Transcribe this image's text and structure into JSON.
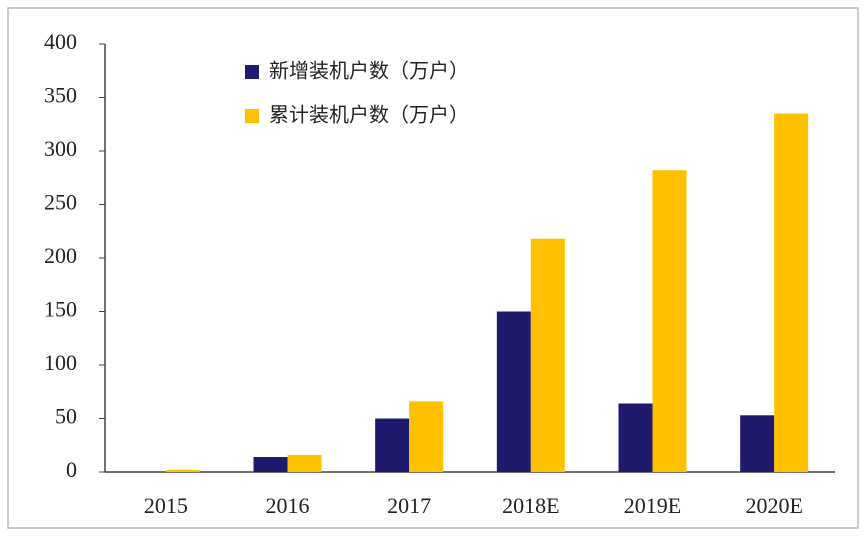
{
  "chart_data": {
    "type": "bar",
    "categories": [
      "2015",
      "2016",
      "2017",
      "2018E",
      "2019E",
      "2020E"
    ],
    "series": [
      {
        "name": "新增装机户数（万户）",
        "color": "#1f1a6e",
        "values": [
          0,
          14,
          50,
          150,
          64,
          53
        ]
      },
      {
        "name": "累计装机户数（万户）",
        "color": "#ffc000",
        "values": [
          2,
          16,
          66,
          218,
          282,
          335
        ]
      }
    ],
    "ylim": [
      0,
      400
    ],
    "yticks": [
      0,
      50,
      100,
      150,
      200,
      250,
      300,
      350,
      400
    ],
    "grid": false,
    "legend": "upper left"
  }
}
